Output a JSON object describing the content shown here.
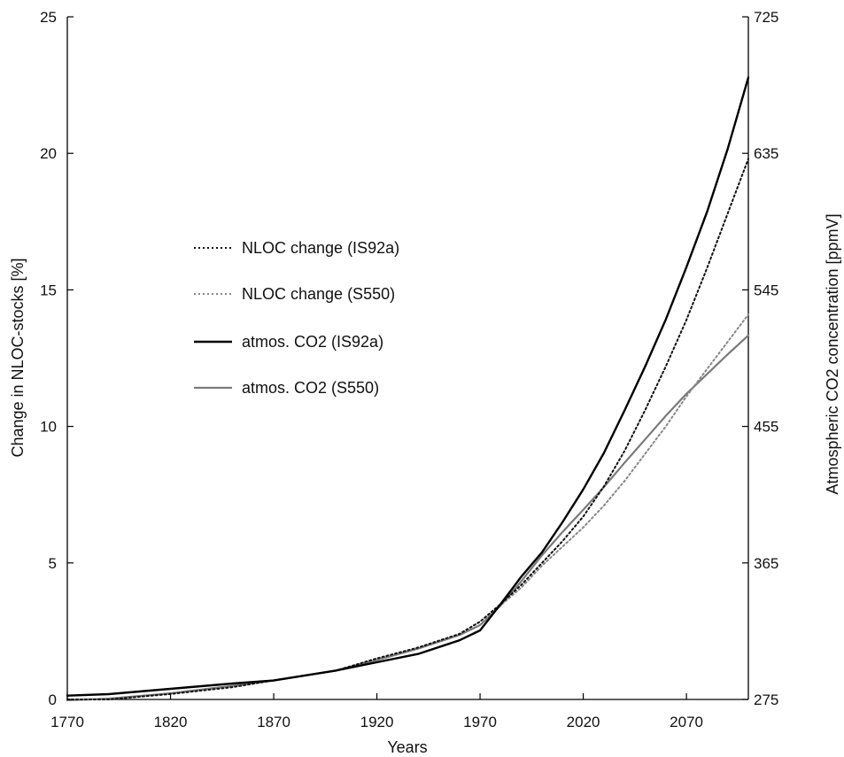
{
  "chart_data": {
    "type": "line",
    "title": "",
    "xlabel": "Years",
    "ylabel_left": "Change in NLOC-stocks [%]",
    "ylabel_right": "Atmospheric CO2 concentration [ppmV]",
    "xlim": [
      1770,
      2100
    ],
    "ylim_left": [
      0,
      25
    ],
    "ylim_right": [
      275,
      725
    ],
    "x_ticks": [
      "1770",
      "1820",
      "1870",
      "1920",
      "1970",
      "2020",
      "2070"
    ],
    "y_ticks_left": [
      "0",
      "5",
      "10",
      "15",
      "20",
      "25"
    ],
    "y_ticks_right": [
      "275",
      "365",
      "455",
      "545",
      "635",
      "725"
    ],
    "grid": false,
    "legend_position": "center-left",
    "series": [
      {
        "name": "NLOC change (IS92a)",
        "axis": "left",
        "style": "dotted",
        "color": "#111111",
        "x": [
          1770,
          1790,
          1820,
          1850,
          1870,
          1900,
          1920,
          1940,
          1960,
          1970,
          1980,
          1990,
          2000,
          2010,
          2020,
          2030,
          2040,
          2050,
          2060,
          2070,
          2080,
          2090,
          2100
        ],
        "y": [
          0,
          0,
          0.2,
          0.45,
          0.7,
          1.05,
          1.5,
          1.9,
          2.4,
          2.85,
          3.5,
          4.2,
          5.0,
          5.8,
          6.7,
          7.8,
          9.1,
          10.6,
          12.2,
          13.9,
          15.8,
          17.8,
          19.8
        ]
      },
      {
        "name": "NLOC change (S550)",
        "axis": "left",
        "style": "dotted",
        "color": "#888888",
        "x": [
          1770,
          1790,
          1820,
          1850,
          1870,
          1900,
          1920,
          1940,
          1960,
          1970,
          1980,
          1990,
          2000,
          2010,
          2020,
          2030,
          2040,
          2050,
          2060,
          2070,
          2080,
          2090,
          2100
        ],
        "y": [
          0,
          0,
          0.2,
          0.45,
          0.7,
          1.05,
          1.5,
          1.9,
          2.4,
          2.85,
          3.45,
          4.1,
          4.9,
          5.6,
          6.3,
          7.1,
          8.0,
          9.0,
          10.0,
          11.1,
          12.1,
          13.1,
          14.1
        ]
      },
      {
        "name": "atmos. CO2 (IS92a)",
        "axis": "right",
        "style": "solid",
        "color": "#000000",
        "x": [
          1770,
          1790,
          1820,
          1850,
          1870,
          1900,
          1920,
          1940,
          1960,
          1970,
          1980,
          1990,
          2000,
          2010,
          2020,
          2030,
          2040,
          2050,
          2060,
          2070,
          2080,
          2090,
          2100
        ],
        "y": [
          277.5,
          278.5,
          282,
          285.5,
          287.5,
          294,
          299.5,
          305,
          314,
          320.5,
          338,
          356,
          372,
          392,
          413.5,
          437.5,
          465.5,
          494.5,
          525.5,
          560,
          596.5,
          638,
          685
        ]
      },
      {
        "name": "atmos. CO2 (S550)",
        "axis": "right",
        "style": "solid",
        "color": "#7a7a7a",
        "x": [
          1770,
          1790,
          1820,
          1850,
          1870,
          1900,
          1920,
          1940,
          1960,
          1970,
          1980,
          1990,
          2000,
          2010,
          2020,
          2030,
          2040,
          2050,
          2060,
          2070,
          2080,
          2090,
          2100
        ],
        "y": [
          274.5,
          275.5,
          279,
          284,
          287.5,
          294,
          301,
          308.5,
          317.5,
          324,
          337,
          353,
          370,
          385.5,
          400,
          415,
          431,
          446.5,
          462,
          476.5,
          489.5,
          502.5,
          515
        ]
      }
    ]
  }
}
